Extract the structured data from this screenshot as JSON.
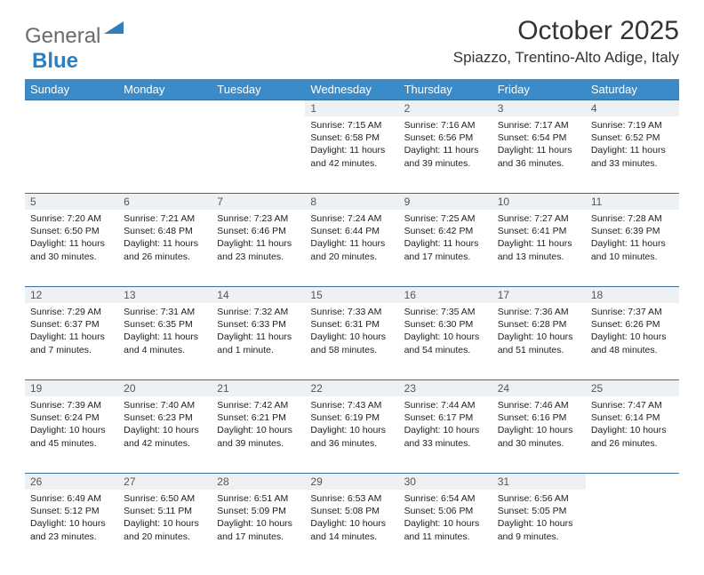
{
  "logo": {
    "word1": "General",
    "word2": "Blue",
    "color_gray": "#6b6b6b",
    "color_blue": "#2f7fbf"
  },
  "header": {
    "title": "October 2025",
    "location": "Spiazzo, Trentino-Alto Adige, Italy"
  },
  "weekdays": [
    "Sunday",
    "Monday",
    "Tuesday",
    "Wednesday",
    "Thursday",
    "Friday",
    "Saturday"
  ],
  "colors": {
    "header_bg": "#3b8bc8",
    "header_text": "#ffffff",
    "row_divider": "#3b6fa0",
    "daynum_bg": "#eef1f3",
    "daynum_text": "#555555",
    "body_text": "#222222",
    "page_bg": "#ffffff"
  },
  "typography": {
    "body_fontsize": 10.5,
    "title_fontsize": 30,
    "location_fontsize": 17,
    "weekday_fontsize": 13,
    "daynum_fontsize": 12
  },
  "layout": {
    "columns": 7,
    "rows": 5,
    "first_day_column_index": 3
  },
  "days": [
    {
      "n": 1,
      "sr": "7:15 AM",
      "ss": "6:58 PM",
      "dl": "11 hours and 42 minutes."
    },
    {
      "n": 2,
      "sr": "7:16 AM",
      "ss": "6:56 PM",
      "dl": "11 hours and 39 minutes."
    },
    {
      "n": 3,
      "sr": "7:17 AM",
      "ss": "6:54 PM",
      "dl": "11 hours and 36 minutes."
    },
    {
      "n": 4,
      "sr": "7:19 AM",
      "ss": "6:52 PM",
      "dl": "11 hours and 33 minutes."
    },
    {
      "n": 5,
      "sr": "7:20 AM",
      "ss": "6:50 PM",
      "dl": "11 hours and 30 minutes."
    },
    {
      "n": 6,
      "sr": "7:21 AM",
      "ss": "6:48 PM",
      "dl": "11 hours and 26 minutes."
    },
    {
      "n": 7,
      "sr": "7:23 AM",
      "ss": "6:46 PM",
      "dl": "11 hours and 23 minutes."
    },
    {
      "n": 8,
      "sr": "7:24 AM",
      "ss": "6:44 PM",
      "dl": "11 hours and 20 minutes."
    },
    {
      "n": 9,
      "sr": "7:25 AM",
      "ss": "6:42 PM",
      "dl": "11 hours and 17 minutes."
    },
    {
      "n": 10,
      "sr": "7:27 AM",
      "ss": "6:41 PM",
      "dl": "11 hours and 13 minutes."
    },
    {
      "n": 11,
      "sr": "7:28 AM",
      "ss": "6:39 PM",
      "dl": "11 hours and 10 minutes."
    },
    {
      "n": 12,
      "sr": "7:29 AM",
      "ss": "6:37 PM",
      "dl": "11 hours and 7 minutes."
    },
    {
      "n": 13,
      "sr": "7:31 AM",
      "ss": "6:35 PM",
      "dl": "11 hours and 4 minutes."
    },
    {
      "n": 14,
      "sr": "7:32 AM",
      "ss": "6:33 PM",
      "dl": "11 hours and 1 minute."
    },
    {
      "n": 15,
      "sr": "7:33 AM",
      "ss": "6:31 PM",
      "dl": "10 hours and 58 minutes."
    },
    {
      "n": 16,
      "sr": "7:35 AM",
      "ss": "6:30 PM",
      "dl": "10 hours and 54 minutes."
    },
    {
      "n": 17,
      "sr": "7:36 AM",
      "ss": "6:28 PM",
      "dl": "10 hours and 51 minutes."
    },
    {
      "n": 18,
      "sr": "7:37 AM",
      "ss": "6:26 PM",
      "dl": "10 hours and 48 minutes."
    },
    {
      "n": 19,
      "sr": "7:39 AM",
      "ss": "6:24 PM",
      "dl": "10 hours and 45 minutes."
    },
    {
      "n": 20,
      "sr": "7:40 AM",
      "ss": "6:23 PM",
      "dl": "10 hours and 42 minutes."
    },
    {
      "n": 21,
      "sr": "7:42 AM",
      "ss": "6:21 PM",
      "dl": "10 hours and 39 minutes."
    },
    {
      "n": 22,
      "sr": "7:43 AM",
      "ss": "6:19 PM",
      "dl": "10 hours and 36 minutes."
    },
    {
      "n": 23,
      "sr": "7:44 AM",
      "ss": "6:17 PM",
      "dl": "10 hours and 33 minutes."
    },
    {
      "n": 24,
      "sr": "7:46 AM",
      "ss": "6:16 PM",
      "dl": "10 hours and 30 minutes."
    },
    {
      "n": 25,
      "sr": "7:47 AM",
      "ss": "6:14 PM",
      "dl": "10 hours and 26 minutes."
    },
    {
      "n": 26,
      "sr": "6:49 AM",
      "ss": "5:12 PM",
      "dl": "10 hours and 23 minutes."
    },
    {
      "n": 27,
      "sr": "6:50 AM",
      "ss": "5:11 PM",
      "dl": "10 hours and 20 minutes."
    },
    {
      "n": 28,
      "sr": "6:51 AM",
      "ss": "5:09 PM",
      "dl": "10 hours and 17 minutes."
    },
    {
      "n": 29,
      "sr": "6:53 AM",
      "ss": "5:08 PM",
      "dl": "10 hours and 14 minutes."
    },
    {
      "n": 30,
      "sr": "6:54 AM",
      "ss": "5:06 PM",
      "dl": "10 hours and 11 minutes."
    },
    {
      "n": 31,
      "sr": "6:56 AM",
      "ss": "5:05 PM",
      "dl": "10 hours and 9 minutes."
    }
  ],
  "labels": {
    "sunrise": "Sunrise:",
    "sunset": "Sunset:",
    "daylight": "Daylight:"
  }
}
